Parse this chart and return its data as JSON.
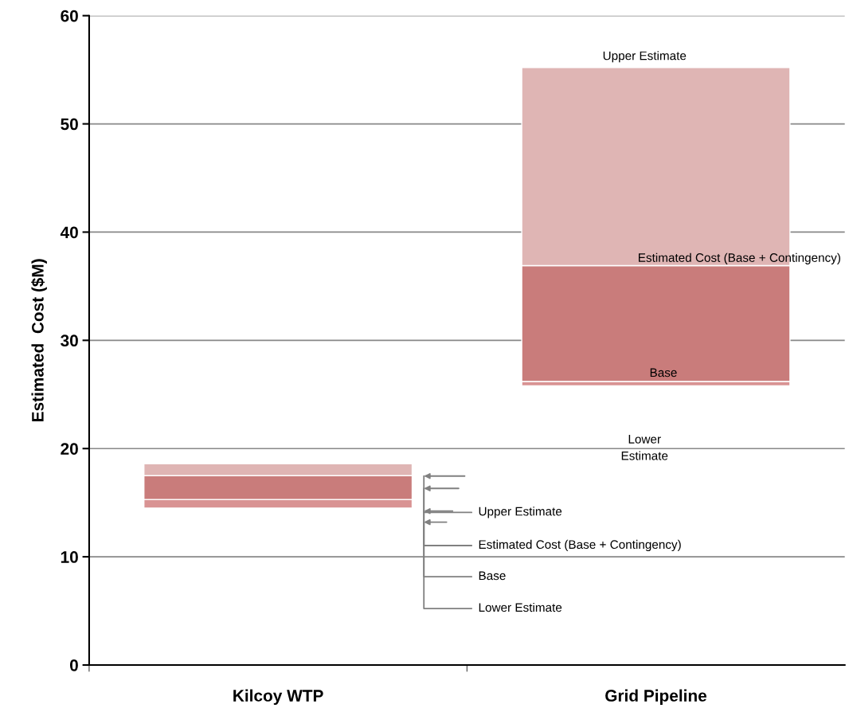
{
  "chart_data": {
    "type": "bar",
    "ylabel": "Estimated  Cost ($M)",
    "categories": [
      "Kilcoy WTP",
      "Grid Pipeline"
    ],
    "series": [
      {
        "color": "#d99393",
        "values": [
          0.8,
          0.4
        ],
        "base": [
          14.5,
          25.8
        ]
      },
      {
        "color": "#c97c7b",
        "values": [
          2.2,
          10.7
        ],
        "base": [
          15.3,
          26.2
        ]
      },
      {
        "color": "#dfb5b4",
        "values": [
          1.1,
          18.3
        ],
        "base": [
          17.5,
          36.9
        ]
      }
    ],
    "ylim": [
      0,
      60
    ],
    "yticks": [
      0,
      10,
      20,
      30,
      40,
      50,
      60
    ],
    "grid": "y",
    "annotations": [
      "Upper Estimate",
      "Estimated Cost (Base + Contingency)",
      "Base",
      "Lower\nEstimate",
      "Upper Estimate",
      "Estimated Cost (Base + Contingency)",
      "Base",
      "Lower Estimate"
    ]
  }
}
